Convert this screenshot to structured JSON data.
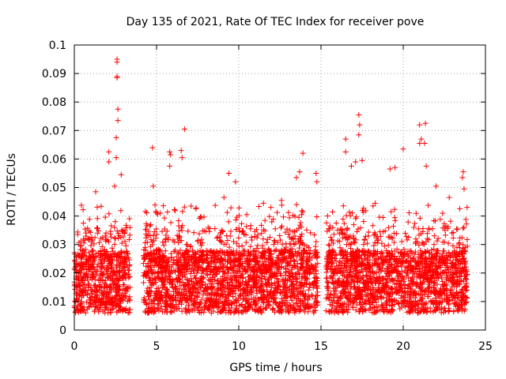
{
  "chart_data": {
    "type": "scatter",
    "title": "Day 135 of 2021, Rate Of TEC Index for receiver pove",
    "xlabel": "GPS time / hours",
    "ylabel": "ROTI / TECUs",
    "xlim": [
      0,
      25
    ],
    "ylim": [
      0,
      0.1
    ],
    "xticks": [
      0,
      5,
      10,
      15,
      20,
      25
    ],
    "xtick_labels": [
      "0",
      "5",
      "10",
      "15",
      "20",
      "25"
    ],
    "yticks": [
      0,
      0.01,
      0.02,
      0.03,
      0.04,
      0.05,
      0.06,
      0.07,
      0.08,
      0.09,
      0.1
    ],
    "ytick_labels": [
      "0",
      "0.01",
      "0.02",
      "0.03",
      "0.04",
      "0.05",
      "0.06",
      "0.07",
      "0.08",
      "0.09",
      "0.1"
    ],
    "grid": true,
    "marker": "+",
    "color": "#ff0000",
    "observation_windows": [
      [
        0,
        3.4
      ],
      [
        4.2,
        14.8
      ],
      [
        15.3,
        23.9
      ]
    ],
    "peaks": [
      {
        "x": 2.6,
        "y": 0.095
      },
      {
        "x": 2.6,
        "y": 0.094
      },
      {
        "x": 2.6,
        "y": 0.089
      },
      {
        "x": 2.6,
        "y": 0.0885
      },
      {
        "x": 2.65,
        "y": 0.0775
      },
      {
        "x": 2.65,
        "y": 0.0735
      },
      {
        "x": 2.55,
        "y": 0.0675
      },
      {
        "x": 2.55,
        "y": 0.0605
      },
      {
        "x": 2.1,
        "y": 0.0625
      },
      {
        "x": 2.1,
        "y": 0.059
      },
      {
        "x": 2.85,
        "y": 0.0545
      },
      {
        "x": 2.45,
        "y": 0.0505
      },
      {
        "x": 4.75,
        "y": 0.064
      },
      {
        "x": 5.8,
        "y": 0.0625
      },
      {
        "x": 5.85,
        "y": 0.0615
      },
      {
        "x": 5.8,
        "y": 0.0575
      },
      {
        "x": 6.5,
        "y": 0.063
      },
      {
        "x": 6.55,
        "y": 0.0605
      },
      {
        "x": 6.7,
        "y": 0.0705
      },
      {
        "x": 4.8,
        "y": 0.0505
      },
      {
        "x": 9.4,
        "y": 0.055
      },
      {
        "x": 9.1,
        "y": 0.0465
      },
      {
        "x": 9.8,
        "y": 0.052
      },
      {
        "x": 13.5,
        "y": 0.0535
      },
      {
        "x": 13.7,
        "y": 0.0555
      },
      {
        "x": 13.9,
        "y": 0.062
      },
      {
        "x": 14.7,
        "y": 0.055
      },
      {
        "x": 14.75,
        "y": 0.052
      },
      {
        "x": 16.5,
        "y": 0.067
      },
      {
        "x": 16.5,
        "y": 0.0625
      },
      {
        "x": 17.3,
        "y": 0.0755
      },
      {
        "x": 17.35,
        "y": 0.072
      },
      {
        "x": 17.3,
        "y": 0.0685
      },
      {
        "x": 17.1,
        "y": 0.059
      },
      {
        "x": 17.5,
        "y": 0.0595
      },
      {
        "x": 16.85,
        "y": 0.0575
      },
      {
        "x": 19.2,
        "y": 0.0565
      },
      {
        "x": 19.5,
        "y": 0.057
      },
      {
        "x": 20.0,
        "y": 0.0635
      },
      {
        "x": 21.0,
        "y": 0.072
      },
      {
        "x": 21.35,
        "y": 0.0725
      },
      {
        "x": 21.1,
        "y": 0.067
      },
      {
        "x": 21.3,
        "y": 0.0655
      },
      {
        "x": 21.4,
        "y": 0.0575
      },
      {
        "x": 21.0,
        "y": 0.0655
      },
      {
        "x": 23.65,
        "y": 0.0555
      },
      {
        "x": 23.6,
        "y": 0.0535
      },
      {
        "x": 23.7,
        "y": 0.0495
      },
      {
        "x": 22.0,
        "y": 0.0505
      },
      {
        "x": 0.55,
        "y": 0.0375
      },
      {
        "x": 1.3,
        "y": 0.0485
      },
      {
        "x": 7.1,
        "y": 0.0435
      },
      {
        "x": 11.5,
        "y": 0.0445
      },
      {
        "x": 12.6,
        "y": 0.0455
      },
      {
        "x": 18.3,
        "y": 0.0445
      },
      {
        "x": 22.8,
        "y": 0.0465
      }
    ]
  }
}
